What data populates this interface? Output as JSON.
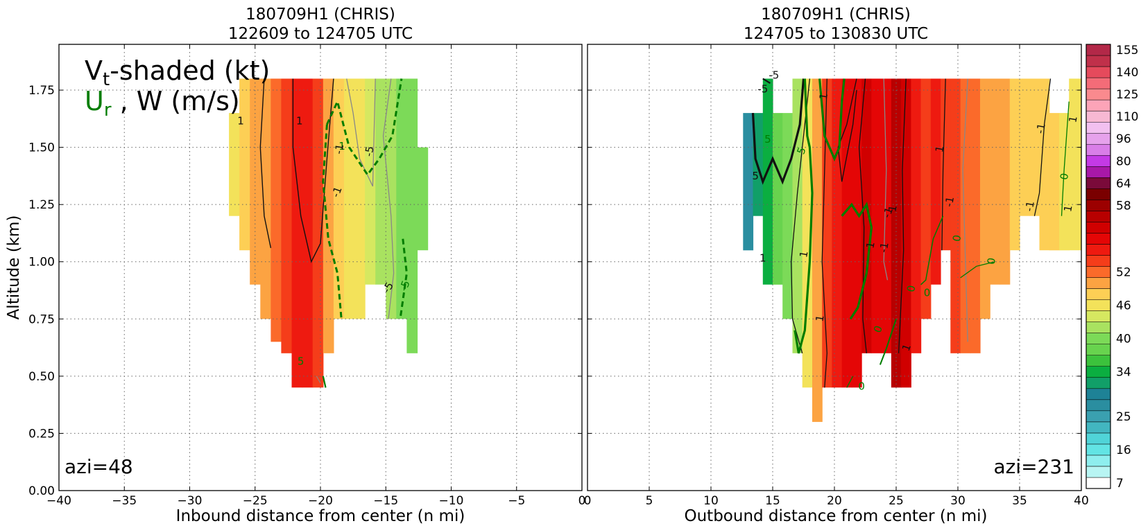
{
  "chart_data": [
    {
      "type": "heatmap",
      "panel": "left",
      "title_line1": "180709H1 (CHRIS)",
      "title_line2": "122609 to 124705 UTC",
      "xlabel": "Inbound distance from center (n mi)",
      "ylabel": "Altitude (km)",
      "xlim": [
        -40,
        0
      ],
      "ylim": [
        0,
        1.95
      ],
      "xticks": [
        "−40",
        "−35",
        "−30",
        "−25",
        "−20",
        "−15",
        "−10",
        "−5",
        "0"
      ],
      "yticks": [
        "0.00",
        "0.25",
        "0.50",
        "0.75",
        "1.00",
        "1.25",
        "1.50",
        "1.75"
      ],
      "grid": true,
      "legend_line1_main": "V",
      "legend_line1_sub": "t",
      "legend_line1_rest": "-shaded (kt)",
      "legend_line2_main": "U",
      "legend_line2_sub": "r",
      "legend_line2_rest": " , W (m/s)",
      "annotation": "azi=48",
      "contour_labels": [
        "1",
        "1",
        "-1",
        "-1",
        "-1",
        "-5",
        "-5",
        "-5",
        "5"
      ],
      "columns": [
        {
          "x0": -27,
          "x1": -26.2,
          "ymin": 1.2,
          "ymax": 1.65,
          "vt": 47
        },
        {
          "x0": -26.2,
          "x1": -25.4,
          "ymin": 1.05,
          "ymax": 1.8,
          "vt": 48
        },
        {
          "x0": -25.4,
          "x1": -24.6,
          "ymin": 0.9,
          "ymax": 1.8,
          "vt": 50
        },
        {
          "x0": -24.6,
          "x1": -23.8,
          "ymin": 0.75,
          "ymax": 1.8,
          "vt": 51
        },
        {
          "x0": -23.8,
          "x1": -23,
          "ymin": 0.65,
          "ymax": 1.8,
          "vt": 52
        },
        {
          "x0": -23,
          "x1": -22.2,
          "ymin": 0.6,
          "ymax": 1.8,
          "vt": 53
        },
        {
          "x0": -22.2,
          "x1": -21.4,
          "ymin": 0.45,
          "ymax": 1.8,
          "vt": 54
        },
        {
          "x0": -21.4,
          "x1": -20.6,
          "ymin": 0.45,
          "ymax": 1.8,
          "vt": 54
        },
        {
          "x0": -20.6,
          "x1": -19.8,
          "ymin": 0.45,
          "ymax": 1.8,
          "vt": 53
        },
        {
          "x0": -19.8,
          "x1": -19,
          "ymin": 0.6,
          "ymax": 1.8,
          "vt": 51
        },
        {
          "x0": -19,
          "x1": -18.2,
          "ymin": 0.75,
          "ymax": 1.8,
          "vt": 48
        },
        {
          "x0": -18.2,
          "x1": -17.4,
          "ymin": 0.75,
          "ymax": 1.8,
          "vt": 47
        },
        {
          "x0": -17.4,
          "x1": -16.6,
          "ymin": 0.75,
          "ymax": 1.8,
          "vt": 46
        },
        {
          "x0": -16.6,
          "x1": -15.8,
          "ymin": 0.9,
          "ymax": 1.8,
          "vt": 45
        },
        {
          "x0": -15.8,
          "x1": -15,
          "ymin": 0.9,
          "ymax": 1.8,
          "vt": 43
        },
        {
          "x0": -15,
          "x1": -14.2,
          "ymin": 0.75,
          "ymax": 1.8,
          "vt": 42
        },
        {
          "x0": -14.2,
          "x1": -13.4,
          "ymin": 0.75,
          "ymax": 1.8,
          "vt": 41
        },
        {
          "x0": -13.4,
          "x1": -12.6,
          "ymin": 0.6,
          "ymax": 1.8,
          "vt": 40
        },
        {
          "x0": -12.6,
          "x1": -11.8,
          "ymin": 1.05,
          "ymax": 1.5,
          "vt": 40
        }
      ]
    },
    {
      "type": "heatmap",
      "panel": "right",
      "title_line1": "180709H1 (CHRIS)",
      "title_line2": "124705 to 130830 UTC",
      "xlabel": "Outbound distance from center (n mi)",
      "xlim": [
        0,
        40
      ],
      "ylim": [
        0,
        1.95
      ],
      "xticks": [
        "0",
        "5",
        "10",
        "15",
        "20",
        "25",
        "30",
        "35",
        "40"
      ],
      "grid": true,
      "annotation": "azi=231",
      "contour_labels": [
        "-5",
        "5",
        "5",
        "-5",
        "5",
        "-1",
        "1",
        "1",
        "1",
        "-1",
        "1",
        "-1",
        "1",
        "1",
        "1",
        "-1",
        "1",
        "0",
        "0",
        "0",
        "0",
        "0",
        "1",
        "-1",
        "1",
        "0",
        "0"
      ],
      "columns": [
        {
          "x0": 12.6,
          "x1": 13.4,
          "ymin": 1.05,
          "ymax": 1.65,
          "vt": 30
        },
        {
          "x0": 13.4,
          "x1": 14.2,
          "ymin": 1.2,
          "ymax": 1.65,
          "vt": 33
        },
        {
          "x0": 14.2,
          "x1": 15,
          "ymin": 0.9,
          "ymax": 1.8,
          "vt": 35
        },
        {
          "x0": 15,
          "x1": 15.8,
          "ymin": 0.9,
          "ymax": 1.65,
          "vt": 38
        },
        {
          "x0": 15.8,
          "x1": 16.6,
          "ymin": 0.75,
          "ymax": 1.65,
          "vt": 40
        },
        {
          "x0": 16.6,
          "x1": 17.4,
          "ymin": 0.6,
          "ymax": 1.8,
          "vt": 43
        },
        {
          "x0": 17.4,
          "x1": 18.2,
          "ymin": 0.45,
          "ymax": 1.8,
          "vt": 46
        },
        {
          "x0": 18.2,
          "x1": 19,
          "ymin": 0.3,
          "ymax": 1.8,
          "vt": 50
        },
        {
          "x0": 19,
          "x1": 19.8,
          "ymin": 0.45,
          "ymax": 1.8,
          "vt": 53
        },
        {
          "x0": 19.8,
          "x1": 20.6,
          "ymin": 0.45,
          "ymax": 1.8,
          "vt": 54
        },
        {
          "x0": 20.6,
          "x1": 21.4,
          "ymin": 0.45,
          "ymax": 1.8,
          "vt": 55
        },
        {
          "x0": 21.4,
          "x1": 22.2,
          "ymin": 0.45,
          "ymax": 1.8,
          "vt": 55
        },
        {
          "x0": 22.2,
          "x1": 23,
          "ymin": 0.6,
          "ymax": 1.8,
          "vt": 56
        },
        {
          "x0": 23,
          "x1": 23.8,
          "ymin": 0.6,
          "ymax": 1.8,
          "vt": 55
        },
        {
          "x0": 23.8,
          "x1": 24.6,
          "ymin": 0.6,
          "ymax": 1.8,
          "vt": 55
        },
        {
          "x0": 24.6,
          "x1": 25.4,
          "ymin": 0.45,
          "ymax": 1.8,
          "vt": 57
        },
        {
          "x0": 25.4,
          "x1": 26.2,
          "ymin": 0.45,
          "ymax": 1.8,
          "vt": 56
        },
        {
          "x0": 26.2,
          "x1": 27,
          "ymin": 0.6,
          "ymax": 1.8,
          "vt": 54
        },
        {
          "x0": 27,
          "x1": 27.8,
          "ymin": 0.75,
          "ymax": 1.8,
          "vt": 53
        },
        {
          "x0": 27.8,
          "x1": 28.6,
          "ymin": 0.9,
          "ymax": 1.8,
          "vt": 54
        },
        {
          "x0": 28.6,
          "x1": 29.4,
          "ymin": 1.05,
          "ymax": 1.8,
          "vt": 53
        },
        {
          "x0": 29.4,
          "x1": 30.2,
          "ymin": 0.6,
          "ymax": 1.8,
          "vt": 53
        },
        {
          "x0": 30.2,
          "x1": 31,
          "ymin": 0.6,
          "ymax": 1.8,
          "vt": 52
        },
        {
          "x0": 31,
          "x1": 31.8,
          "ymin": 0.6,
          "ymax": 1.8,
          "vt": 52
        },
        {
          "x0": 31.8,
          "x1": 32.6,
          "ymin": 0.75,
          "ymax": 1.8,
          "vt": 51
        },
        {
          "x0": 32.6,
          "x1": 33.4,
          "ymin": 0.9,
          "ymax": 1.8,
          "vt": 51
        },
        {
          "x0": 33.4,
          "x1": 34.2,
          "ymin": 0.9,
          "ymax": 1.8,
          "vt": 50
        },
        {
          "x0": 34.2,
          "x1": 35,
          "ymin": 1.05,
          "ymax": 1.8,
          "vt": 49
        },
        {
          "x0": 35,
          "x1": 35.8,
          "ymin": 1.2,
          "ymax": 1.8,
          "vt": 48
        },
        {
          "x0": 35.8,
          "x1": 36.6,
          "ymin": 1.2,
          "ymax": 1.8,
          "vt": 48
        },
        {
          "x0": 36.6,
          "x1": 37.4,
          "ymin": 1.05,
          "ymax": 1.8,
          "vt": 49
        },
        {
          "x0": 37.4,
          "x1": 38.2,
          "ymin": 1.05,
          "ymax": 1.65,
          "vt": 48
        },
        {
          "x0": 38.2,
          "x1": 39,
          "ymin": 1.05,
          "ymax": 1.65,
          "vt": 47
        },
        {
          "x0": 39,
          "x1": 40,
          "ymin": 1.05,
          "ymax": 1.8,
          "vt": 47
        }
      ]
    }
  ],
  "colorbar": {
    "ticks": [
      "155",
      "140",
      "125",
      "110",
      "96",
      "80",
      "64",
      "58",
      "52",
      "46",
      "40",
      "34",
      "25",
      "16",
      "7"
    ],
    "levels": [
      {
        "v": 7,
        "color": "#ffffff"
      },
      {
        "v": 10,
        "color": "#b8f5f3"
      },
      {
        "v": 13,
        "color": "#8eeeee"
      },
      {
        "v": 16,
        "color": "#62e4e4"
      },
      {
        "v": 19,
        "color": "#50d4d8"
      },
      {
        "v": 22,
        "color": "#42b6c0"
      },
      {
        "v": 25,
        "color": "#3aa0b0"
      },
      {
        "v": 28,
        "color": "#2a8ea0"
      },
      {
        "v": 31,
        "color": "#1e8296"
      },
      {
        "v": 32.5,
        "color": "#119f68"
      },
      {
        "v": 34,
        "color": "#0bae40"
      },
      {
        "v": 36,
        "color": "#3cc23c"
      },
      {
        "v": 38,
        "color": "#68d34e"
      },
      {
        "v": 40,
        "color": "#7cda58"
      },
      {
        "v": 42,
        "color": "#a9e260"
      },
      {
        "v": 44,
        "color": "#d6e860"
      },
      {
        "v": 46,
        "color": "#f3e25a"
      },
      {
        "v": 48,
        "color": "#fdcf55"
      },
      {
        "v": 50,
        "color": "#fca342"
      },
      {
        "v": 52,
        "color": "#fb6a2a"
      },
      {
        "v": 53,
        "color": "#f53d1a"
      },
      {
        "v": 54,
        "color": "#ee1a10"
      },
      {
        "v": 55,
        "color": "#e40606"
      },
      {
        "v": 56,
        "color": "#d00000"
      },
      {
        "v": 57,
        "color": "#b80000"
      },
      {
        "v": 58,
        "color": "#9c0000"
      },
      {
        "v": 61,
        "color": "#7a0000"
      },
      {
        "v": 64,
        "color": "#7a0a3a"
      },
      {
        "v": 72,
        "color": "#a818a8"
      },
      {
        "v": 80,
        "color": "#c43ae6"
      },
      {
        "v": 88,
        "color": "#d97ee8"
      },
      {
        "v": 96,
        "color": "#e6a2ec"
      },
      {
        "v": 103,
        "color": "#f2c0f0"
      },
      {
        "v": 110,
        "color": "#f7b8d3"
      },
      {
        "v": 117,
        "color": "#fca4b8"
      },
      {
        "v": 125,
        "color": "#fa8a8e"
      },
      {
        "v": 132,
        "color": "#f46c78"
      },
      {
        "v": 140,
        "color": "#e54a5c"
      },
      {
        "v": 147,
        "color": "#c0304a"
      },
      {
        "v": 155,
        "color": "#b32848"
      },
      {
        "v": 160,
        "color": "#9e1a3e"
      }
    ]
  },
  "colors": {
    "frame": "#000000",
    "grid": "#666666",
    "ur_contour": "#007d00",
    "w_contour": "#111111",
    "w_neg_contour": "#888888"
  }
}
